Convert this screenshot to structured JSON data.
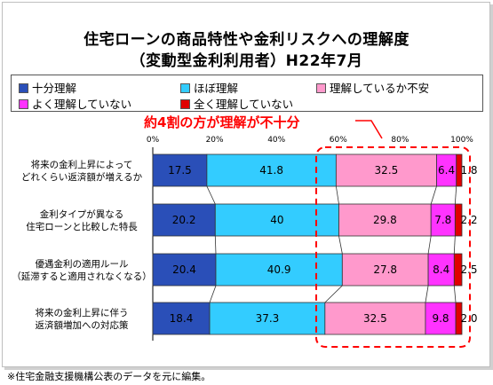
{
  "title_line1": "住宅ローンの商品特性や金利リスクへの理解度",
  "title_line2": "（変動型金利利用者）H22年7月",
  "callout": "約4割の方が理解が不十分",
  "footnote": "※住宅金融支援機構公表のデータを元に編集。",
  "colors": {
    "full": "#2a4fb8",
    "mostly": "#33ccff",
    "partial": "#ff99cc",
    "little": "#ff33ff",
    "none": "#e00000",
    "callout": "#ff0000"
  },
  "chart_data": {
    "type": "bar",
    "orientation": "horizontal",
    "stacked": true,
    "percent": true,
    "xlim": [
      0,
      100
    ],
    "xticks": [
      "0%",
      "20%",
      "40%",
      "60%",
      "80%",
      "100%"
    ],
    "categories": [
      [
        "将来の金利上昇によって",
        "どれくらい返済額が増えるか"
      ],
      [
        "金利タイプが異なる",
        "住宅ローンと比較した特長"
      ],
      [
        "優遇金利の適用ルール",
        "（延滞すると適用されなくなる）"
      ],
      [
        "将来の金利上昇に伴う",
        "返済額増加への対応策"
      ]
    ],
    "series": [
      {
        "name": "十分理解",
        "color_key": "full",
        "values": [
          17.5,
          20.2,
          20.4,
          18.4
        ]
      },
      {
        "name": "ほぼ理解",
        "color_key": "mostly",
        "values": [
          41.8,
          40,
          40.9,
          37.3
        ]
      },
      {
        "name": "理解しているか不安",
        "color_key": "partial",
        "values": [
          32.5,
          29.8,
          27.8,
          32.5
        ]
      },
      {
        "name": "よく理解していない",
        "color_key": "little",
        "values": [
          6.4,
          7.8,
          8.4,
          9.8
        ]
      },
      {
        "name": "全く理解していない",
        "color_key": "none",
        "values": [
          1.8,
          2.2,
          2.5,
          2.0
        ]
      }
    ],
    "value_labels": [
      [
        "17.5",
        "41.8",
        "32.5",
        "6.4",
        "1.8"
      ],
      [
        "20.2",
        "40",
        "29.8",
        "7.8",
        "2.2"
      ],
      [
        "20.4",
        "40.9",
        "27.8",
        "8.4",
        "2.5"
      ],
      [
        "18.4",
        "37.3",
        "32.5",
        "9.8",
        "2.0"
      ]
    ],
    "legend_position": "top",
    "grid": false
  }
}
